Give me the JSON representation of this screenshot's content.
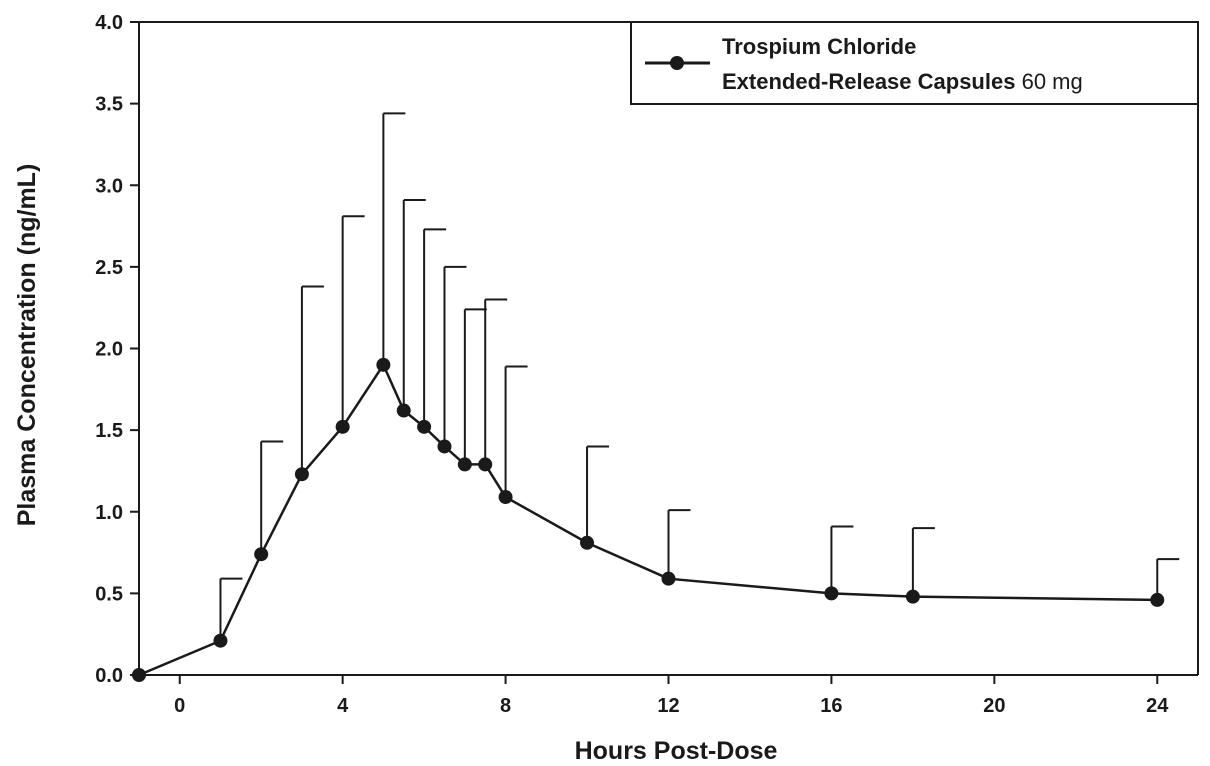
{
  "chart_data": {
    "type": "line",
    "title": "",
    "xlabel": "Hours Post-Dose",
    "ylabel": "Plasma Concentration (ng/mL)",
    "xlim": [
      -1,
      25
    ],
    "ylim": [
      0,
      4
    ],
    "xticks": [
      0,
      4,
      8,
      12,
      16,
      20,
      24
    ],
    "yticks": [
      0.0,
      0.5,
      1.0,
      1.5,
      2.0,
      2.5,
      3.0,
      3.5,
      4.0
    ],
    "ytick_labels": [
      "0.0",
      "0.5",
      "1.0",
      "1.5",
      "2.0",
      "2.5",
      "3.0",
      "3.5",
      "4.0"
    ],
    "grid": false,
    "legend_position": "top-right",
    "legend": {
      "line1": "Trospium Chloride",
      "line2_bold": "Extended-Release Capsules",
      "line2_light": " 60 mg"
    },
    "series": [
      {
        "name": "Trospium Chloride Extended-Release Capsules 60 mg",
        "color": "#1a1a1a",
        "x": [
          -1,
          1,
          2,
          3,
          4,
          5,
          5.5,
          6,
          6.5,
          7,
          7.5,
          8,
          10,
          12,
          16,
          18,
          24
        ],
        "y": [
          0.0,
          0.21,
          0.74,
          1.23,
          1.52,
          1.9,
          1.62,
          1.52,
          1.4,
          1.29,
          1.29,
          1.09,
          0.81,
          0.59,
          0.5,
          0.48,
          0.46
        ],
        "y_upper": [
          null,
          0.59,
          1.43,
          2.38,
          2.81,
          3.44,
          2.91,
          2.73,
          2.5,
          2.24,
          2.3,
          1.89,
          1.4,
          1.01,
          0.91,
          0.9,
          0.71
        ]
      }
    ]
  }
}
